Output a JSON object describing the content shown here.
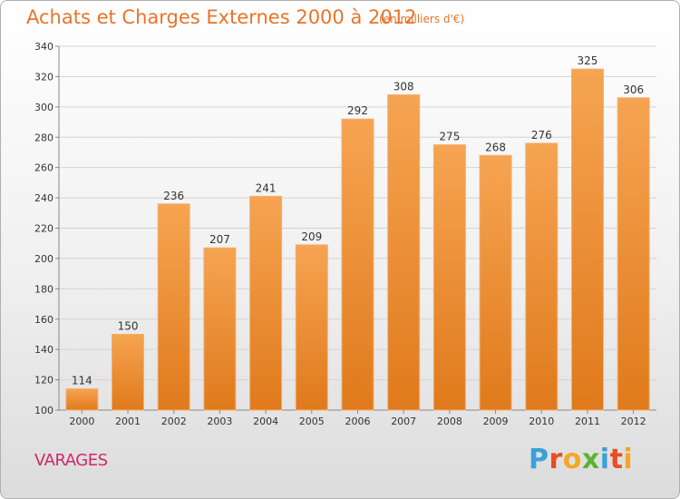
{
  "header": {
    "title": "Achats et Charges Externes 2000 à 2012",
    "subtitle": "(en milliers d'€)"
  },
  "footer": {
    "place": "VARAGES",
    "logo": {
      "letters": [
        "P",
        "r",
        "o",
        "x",
        "i",
        "t",
        "i"
      ],
      "colors": [
        "#3aa0d8",
        "#e84d24",
        "#f5a623",
        "#5ab434",
        "#3aa0d8",
        "#e84d24",
        "#f5a623"
      ]
    }
  },
  "colors": {
    "bar_light": "#f6a452",
    "bar_dark": "#e07a1c",
    "title": "#e8742a"
  },
  "chart_data": {
    "type": "bar",
    "title": "Achats et Charges Externes 2000 à 2012",
    "subtitle": "(en milliers d'€)",
    "categories": [
      "2000",
      "2001",
      "2002",
      "2003",
      "2004",
      "2005",
      "2006",
      "2007",
      "2008",
      "2009",
      "2010",
      "2011",
      "2012"
    ],
    "values": [
      114,
      150,
      236,
      207,
      241,
      209,
      292,
      308,
      275,
      268,
      276,
      325,
      306
    ],
    "ylim": [
      100,
      340
    ],
    "yticks": [
      100,
      120,
      140,
      160,
      180,
      200,
      220,
      240,
      260,
      280,
      300,
      320,
      340
    ],
    "grid": true,
    "legend": "none"
  }
}
